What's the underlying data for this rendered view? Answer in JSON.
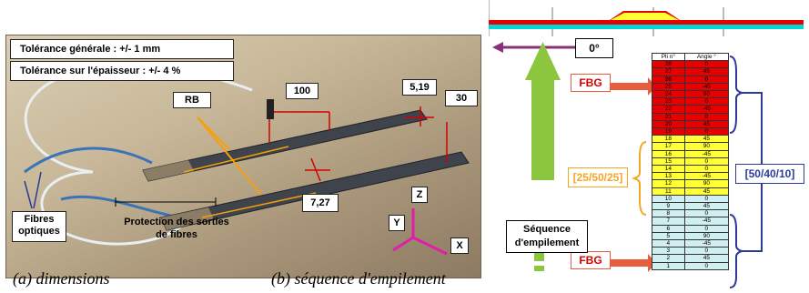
{
  "left_panel": {
    "tolerance_general": "Tolérance générale : +/- 1 mm",
    "tolerance_thickness": "Tolérance sur l'épaisseur : +/- 4 %",
    "rb": "RB",
    "dim_100": "100",
    "dim_519": "5,19",
    "dim_30": "30",
    "dim_727": "7,27",
    "axis_y": "Y",
    "axis_z": "Z",
    "axis_x": "X",
    "fibres_line1": "Fibres",
    "fibres_line2": "optiques",
    "protection_line1": "Protection des sorties",
    "protection_line2": "de fibres",
    "caption": "(a) dimensions"
  },
  "right_panel": {
    "angle_label": "0°",
    "fbg_top": "FBG",
    "fbg_bottom": "FBG",
    "bracket_mid": "[25/50/25]",
    "bracket_right": "[50/40/10]",
    "sequence_line1": "Séquence",
    "sequence_line2": "d'empilement",
    "caption": "(b) séquence d'empilement",
    "table_headers": [
      "Pli n°",
      "Angle °"
    ],
    "plies": [
      {
        "n": "28",
        "angle": "0",
        "zone": "red"
      },
      {
        "n": "27",
        "angle": "45",
        "zone": "red"
      },
      {
        "n": "26",
        "angle": "0",
        "zone": "red"
      },
      {
        "n": "25",
        "angle": "-45",
        "zone": "red"
      },
      {
        "n": "24",
        "angle": "90",
        "zone": "red"
      },
      {
        "n": "23",
        "angle": "0",
        "zone": "red"
      },
      {
        "n": "22",
        "angle": "-45",
        "zone": "red"
      },
      {
        "n": "21",
        "angle": "0",
        "zone": "red"
      },
      {
        "n": "20",
        "angle": "45",
        "zone": "red"
      },
      {
        "n": "19",
        "angle": "0",
        "zone": "red"
      },
      {
        "n": "18",
        "angle": "45",
        "zone": "yellow"
      },
      {
        "n": "17",
        "angle": "90",
        "zone": "yellow"
      },
      {
        "n": "16",
        "angle": "-45",
        "zone": "yellow"
      },
      {
        "n": "15",
        "angle": "0",
        "zone": "yellow"
      },
      {
        "n": "14",
        "angle": "0",
        "zone": "yellow"
      },
      {
        "n": "13",
        "angle": "-45",
        "zone": "yellow"
      },
      {
        "n": "12",
        "angle": "90",
        "zone": "yellow"
      },
      {
        "n": "11",
        "angle": "45",
        "zone": "yellow"
      },
      {
        "n": "10",
        "angle": "0",
        "zone": "cyan"
      },
      {
        "n": "9",
        "angle": "45",
        "zone": "cyan"
      },
      {
        "n": "8",
        "angle": "0",
        "zone": "cyan"
      },
      {
        "n": "7",
        "angle": "-45",
        "zone": "cyan"
      },
      {
        "n": "6",
        "angle": "0",
        "zone": "cyan"
      },
      {
        "n": "5",
        "angle": "90",
        "zone": "cyan"
      },
      {
        "n": "4",
        "angle": "-45",
        "zone": "cyan"
      },
      {
        "n": "3",
        "angle": "0",
        "zone": "cyan"
      },
      {
        "n": "2",
        "angle": "45",
        "zone": "cyan"
      },
      {
        "n": "1",
        "angle": "0",
        "zone": "cyan"
      }
    ],
    "colors": {
      "red": "#e60000",
      "yellow": "#ffff33",
      "cyan": "#cfeff0",
      "green_arrow": "#8cc63f",
      "bracket_yellow": "#f5a623",
      "bracket_blue": "#2a3b9a"
    }
  }
}
